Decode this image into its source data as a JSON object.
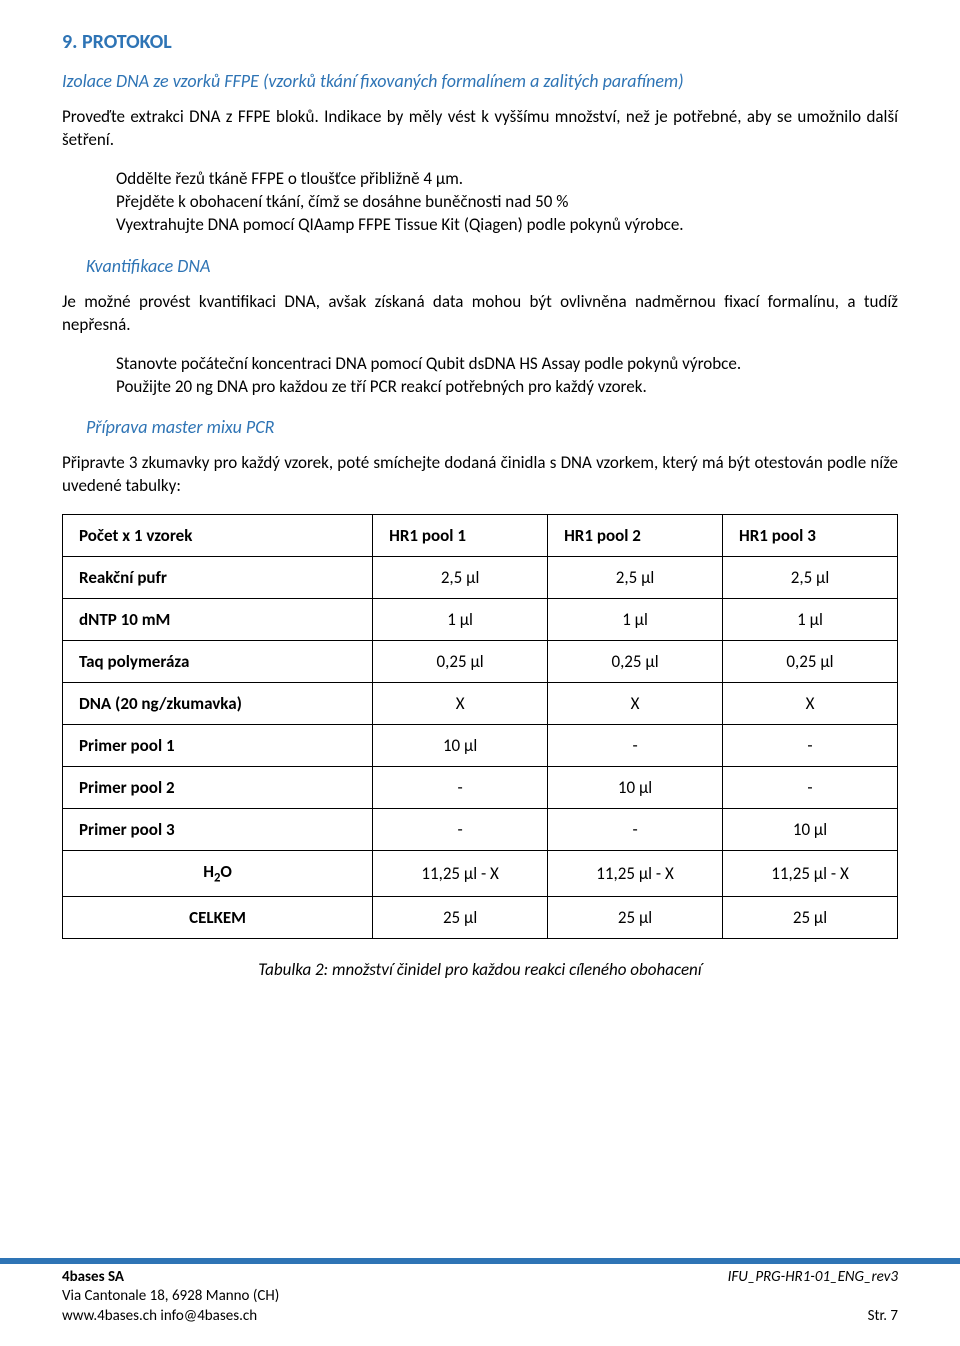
{
  "section": {
    "title": "9. PROTOKOL"
  },
  "sub1": {
    "title": "Izolace DNA ze vzorků FFPE (vzorků tkání fixovaných formalínem a zalitých parafínem)",
    "p1": "Proveďte extrakci DNA z FFPE bloků. Indikace by měly vést k vyššímu množství, než je potřebné, aby se umožnilo další šetření.",
    "p2a": "Oddělte řezů tkáně FFPE o tloušťce přibližně 4 µm.",
    "p2b": "Přejděte k obohacení tkání, čímž se dosáhne buněčnosti nad 50 %",
    "p2c": "Vyextrahujte DNA pomocí QIAamp FFPE Tissue Kit (Qiagen) podle pokynů výrobce."
  },
  "sub2": {
    "title": "Kvantifikace DNA",
    "p1": "Je možné provést kvantifikaci DNA, avšak získaná data mohou být ovlivněna nadměrnou fixací formalínu, a tudíž nepřesná.",
    "p2a": "Stanovte počáteční koncentraci DNA pomocí Qubit dsDNA HS Assay podle pokynů výrobce.",
    "p2b": "Použijte 20 ng DNA pro každou ze tří PCR reakcí potřebných pro každý vzorek."
  },
  "sub3": {
    "title": "Příprava master mixu PCR",
    "p1": "Připravte 3 zkumavky pro každý vzorek, poté smíchejte dodaná činidla s DNA vzorkem, který má být otestován podle níže uvedené tabulky:"
  },
  "table": {
    "columns": [
      "Počet x 1 vzorek",
      "HR1 pool 1",
      "HR1 pool 2",
      "HR1 pool 3"
    ],
    "col_align": [
      "left",
      "center",
      "center",
      "center"
    ],
    "rows": [
      {
        "label": "Reakční pufr",
        "indent": true,
        "cells": [
          "2,5 µl",
          "2,5 µl",
          "2,5 µl"
        ]
      },
      {
        "label": "dNTP 10 mM",
        "indent": true,
        "cells": [
          "1 µl",
          "1 µl",
          "1 µl"
        ]
      },
      {
        "label": "Taq polymeráza",
        "indent": false,
        "cells": [
          "0,25 µl",
          "0,25 µl",
          "0,25 µl"
        ]
      },
      {
        "label": "DNA (20 ng/zkumavka)",
        "indent": false,
        "cells": [
          "X",
          "X",
          "X"
        ]
      },
      {
        "label": "Primer pool 1",
        "indent": true,
        "cells": [
          "10 µl",
          "-",
          "-"
        ]
      },
      {
        "label": "Primer pool 2",
        "indent": true,
        "cells": [
          "-",
          "10 µl",
          "-"
        ]
      },
      {
        "label": "Primer pool 3",
        "indent": true,
        "cells": [
          "-",
          "-",
          "10 µl"
        ]
      },
      {
        "label": "H2O",
        "indent": false,
        "center_label": true,
        "subscript": true,
        "cells": [
          "11,25 µl - X",
          "11,25 µl - X",
          "11,25 µl - X"
        ]
      },
      {
        "label": "CELKEM",
        "indent": false,
        "center_label": true,
        "cells": [
          "25 µl",
          "25 µl",
          "25 µl"
        ]
      }
    ],
    "caption": "Tabulka 2: množství činidel pro každou reakci cíleného obohacení",
    "border_color": "#000000",
    "header_weight": "700"
  },
  "footer": {
    "company": "4bases SA",
    "addr": "Via Cantonale 18, 6928 Manno (CH)",
    "web": "www.4bases.ch info@4bases.ch",
    "ref": "IFU_PRG-HR1-01_ENG_rev3",
    "page": "Str. 7",
    "line_color": "#2e74b5"
  }
}
